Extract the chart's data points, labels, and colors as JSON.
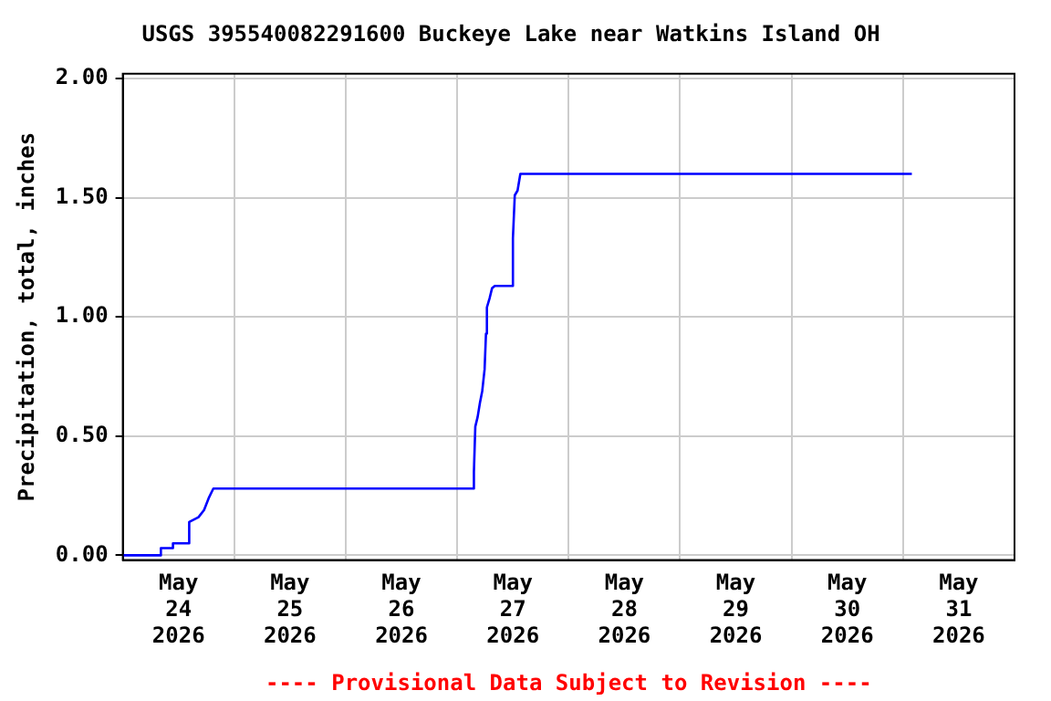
{
  "chart_data": {
    "type": "line",
    "title": "USGS 395540082291600 Buckeye Lake near Watkins Island OH",
    "ylabel": "Precipitation, total, inches",
    "annotations": [
      "---- Provisional Data Subject to Revision ----"
    ],
    "x": [
      "2026-05-24T00:00",
      "2026-05-24T08:12",
      "2026-05-24T08:12",
      "2026-05-24T10:48",
      "2026-05-24T10:48",
      "2026-05-24T14:18",
      "2026-05-24T14:18",
      "2026-05-24T16:18",
      "2026-05-24T17:30",
      "2026-05-24T18:30",
      "2026-05-24T19:30",
      "2026-05-27T03:36",
      "2026-05-27T03:36",
      "2026-05-27T03:54",
      "2026-05-27T04:24",
      "2026-05-27T04:54",
      "2026-05-27T05:24",
      "2026-05-27T05:54",
      "2026-05-27T06:12",
      "2026-05-27T06:24",
      "2026-05-27T07:00",
      "2026-05-27T07:30",
      "2026-05-27T08:06",
      "2026-05-27T12:00",
      "2026-05-27T12:00",
      "2026-05-27T12:24",
      "2026-05-27T13:00",
      "2026-05-27T13:36",
      "2026-05-31T01:54"
    ],
    "series": [
      {
        "color": "#0000ff",
        "values": [
          0,
          0,
          0.03,
          0.03,
          0.05,
          0.05,
          0.14,
          0.16,
          0.19,
          0.24,
          0.28,
          0.28,
          0.35,
          0.54,
          0.58,
          0.64,
          0.69,
          0.78,
          0.93,
          1.04,
          1.08,
          1.12,
          1.13,
          1.13,
          1.33,
          1.51,
          1.53,
          1.6,
          1.6
        ]
      }
    ],
    "xlim": [
      "2026-05-24T00:00",
      "2026-06-01T00:00"
    ],
    "xticks": [
      {
        "value": "2026-05-24T12:00",
        "label": "May\n24\n2026"
      },
      {
        "value": "2026-05-25T00:00",
        "label": null
      },
      {
        "value": "2026-05-25T12:00",
        "label": "May\n25\n2026"
      },
      {
        "value": "2026-05-26T00:00",
        "label": null
      },
      {
        "value": "2026-05-26T12:00",
        "label": "May\n26\n2026"
      },
      {
        "value": "2026-05-27T00:00",
        "label": null
      },
      {
        "value": "2026-05-27T12:00",
        "label": "May\n27\n2026"
      },
      {
        "value": "2026-05-28T00:00",
        "label": null
      },
      {
        "value": "2026-05-28T12:00",
        "label": "May\n28\n2026"
      },
      {
        "value": "2026-05-29T00:00",
        "label": null
      },
      {
        "value": "2026-05-29T12:00",
        "label": "May\n29\n2026"
      },
      {
        "value": "2026-05-30T00:00",
        "label": null
      },
      {
        "value": "2026-05-30T12:00",
        "label": "May\n30\n2026"
      },
      {
        "value": "2026-05-31T00:00",
        "label": null
      },
      {
        "value": "2026-05-31T12:00",
        "label": "May\n31\n2026"
      }
    ],
    "ylim": [
      -0.02,
      2.02
    ],
    "yticks": [
      {
        "value": 0,
        "label": "0.00"
      },
      {
        "value": 0.5,
        "label": "0.50"
      },
      {
        "value": 1,
        "label": "1.00"
      },
      {
        "value": 1.5,
        "label": "1.50"
      },
      {
        "value": 2,
        "label": "2.00"
      }
    ],
    "grid": true,
    "marker": "none",
    "line_style": "solid"
  }
}
